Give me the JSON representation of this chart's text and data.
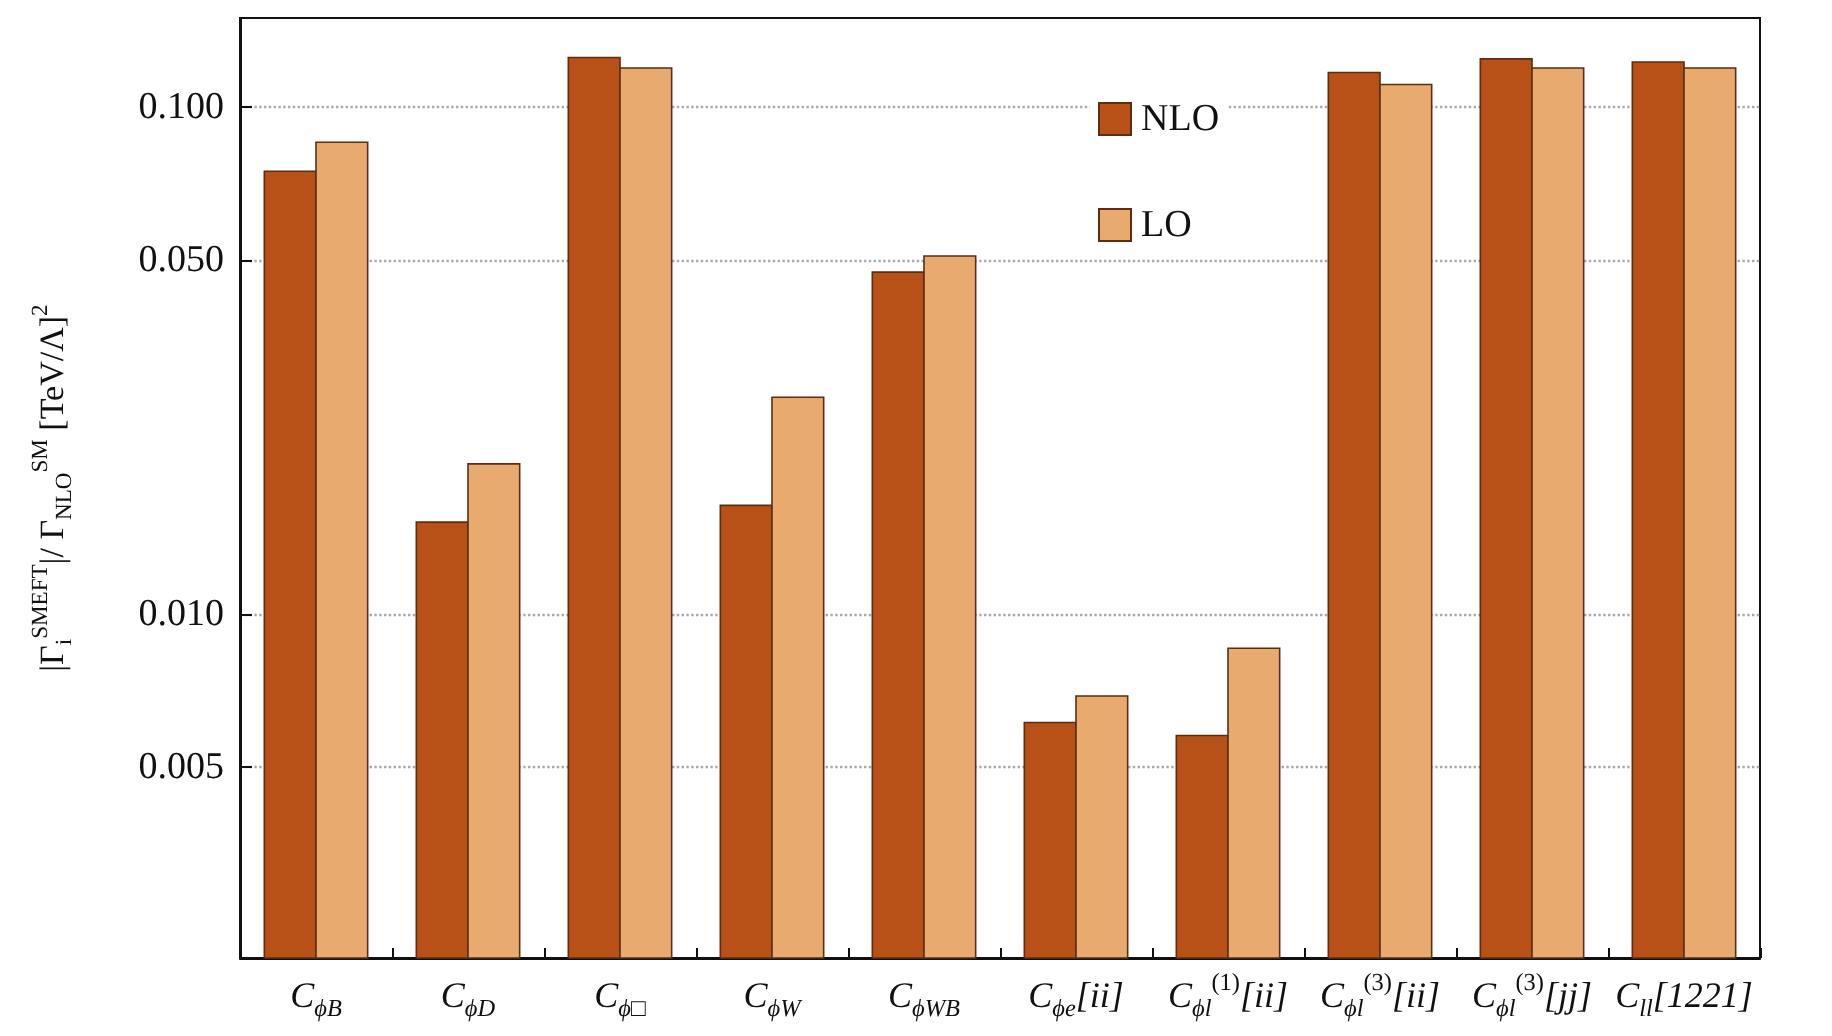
{
  "chart_data": {
    "type": "bar",
    "ylabel": "|Γ$_{i}$$^{SMEFT}$|/ Γ$_{NLO}$$^{SM}$ [TeV/Λ]$^{2}$",
    "categories": [
      "C$_{ϕB}$",
      "C$_{ϕD}$",
      "C$_{ϕ□}$",
      "C$_{ϕW}$",
      "C$_{ϕWB}$",
      "C$_{ϕe}$[ii]",
      "C$_{ϕl}$$^{(1)}$[ii]",
      "C$_{ϕl}$$^{(3)}$[ii]",
      "C$_{ϕl}$$^{(3)}$[jj]",
      "C$_{ll}$[1221]"
    ],
    "series": [
      {
        "name": "NLO",
        "color": "#b85118",
        "values": [
          0.0748,
          0.0152,
          0.1254,
          0.0164,
          0.0473,
          0.00612,
          0.00577,
          0.1171,
          0.1246,
          0.1228
        ]
      },
      {
        "name": "LO",
        "color": "#e8aa6e",
        "values": [
          0.0853,
          0.0198,
          0.1195,
          0.0268,
          0.0509,
          0.0069,
          0.00857,
          0.1109,
          0.1195,
          0.1195
        ]
      }
    ],
    "log": "y",
    "ylim": [
      0.0021,
      0.15
    ],
    "yticks": [
      {
        "value": 0.005,
        "label": "0.005"
      },
      {
        "value": 0.01,
        "label": "0.010"
      },
      {
        "value": 0.05,
        "label": "0.050"
      },
      {
        "value": 0.1,
        "label": "0.100"
      }
    ],
    "grid": "y",
    "legend": "top"
  }
}
